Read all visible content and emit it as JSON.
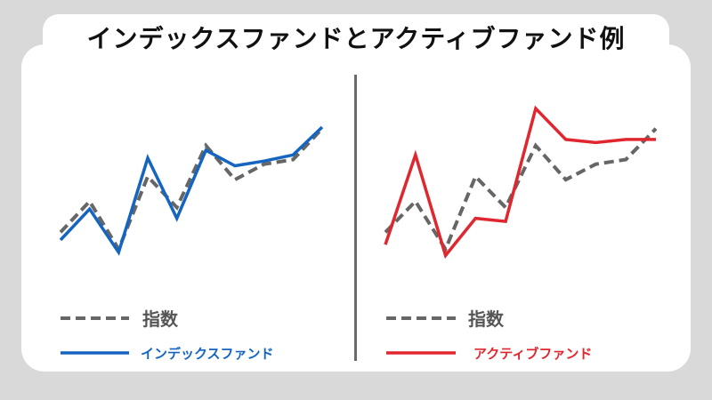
{
  "title": "インデックスファンドとアクティブファンド例",
  "colors": {
    "index": "#666666",
    "index_fund": "#1565c0",
    "active_fund": "#e0272f",
    "background": "#d9d9d9"
  },
  "chart_data": [
    {
      "type": "line",
      "x": [
        0,
        1,
        2,
        3,
        4,
        5,
        6,
        7,
        8,
        9
      ],
      "ylim": [
        0,
        100
      ],
      "grid": false,
      "legend": "bottom",
      "series": [
        {
          "name": "指数",
          "style": "dashed",
          "color": "#666666",
          "values": [
            28,
            48,
            17,
            64,
            44,
            84,
            62,
            72,
            75,
            95
          ]
        },
        {
          "name": "インデックスファンド",
          "style": "solid",
          "color": "#1565c0",
          "values": [
            23,
            43,
            15,
            76,
            37,
            81,
            71,
            74,
            78,
            96
          ]
        }
      ]
    },
    {
      "type": "line",
      "x": [
        0,
        1,
        2,
        3,
        4,
        5,
        6,
        7,
        8,
        9
      ],
      "ylim": [
        0,
        100
      ],
      "grid": false,
      "legend": "bottom",
      "series": [
        {
          "name": "指数",
          "style": "dashed",
          "color": "#666666",
          "values": [
            28,
            48,
            17,
            64,
            44,
            84,
            62,
            72,
            75,
            95
          ]
        },
        {
          "name": "アクティブファンド",
          "style": "solid",
          "color": "#e0272f",
          "values": [
            20,
            78,
            13,
            37,
            35,
            108,
            88,
            86,
            88,
            88
          ]
        }
      ]
    }
  ]
}
